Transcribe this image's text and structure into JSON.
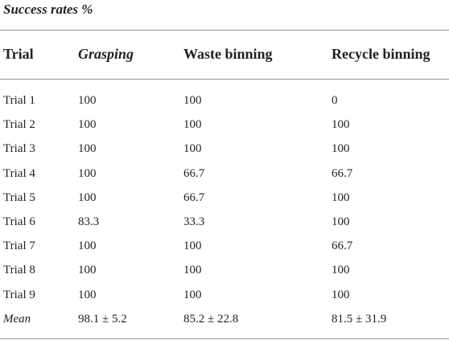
{
  "table": {
    "title": "Success rates %",
    "header": [
      "Trial",
      "Grasping",
      "Waste binning",
      "Recycle binning"
    ],
    "rows": [
      [
        "Trial 1",
        "100",
        "100",
        "0"
      ],
      [
        "Trial 2",
        "100",
        "100",
        "100"
      ],
      [
        "Trial 3",
        "100",
        "100",
        "100"
      ],
      [
        "Trial 4",
        "100",
        "66.7",
        "66.7"
      ],
      [
        "Trial 5",
        "100",
        "66.7",
        "100"
      ],
      [
        "Trial 6",
        "83.3",
        "33.3",
        "100"
      ],
      [
        "Trial 7",
        "100",
        "100",
        "66.7"
      ],
      [
        "Trial 8",
        "100",
        "100",
        "100"
      ],
      [
        "Trial 9",
        "100",
        "100",
        "100"
      ],
      [
        "Mean",
        "98.1 ± 5.2",
        "85.2 ± 22.8",
        "81.5 ± 31.9"
      ]
    ]
  }
}
